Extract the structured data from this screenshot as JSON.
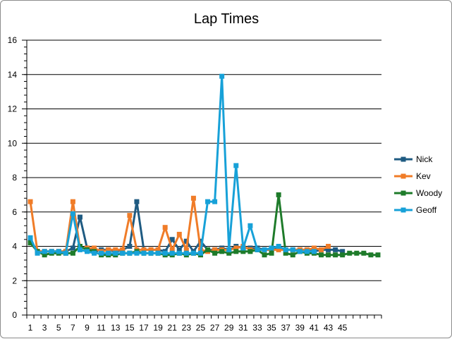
{
  "chart_data": {
    "type": "line",
    "title": "Lap Times",
    "xlabel": "",
    "ylabel": "",
    "ylim": [
      0,
      16
    ],
    "y_ticks": [
      "0",
      "2",
      "4",
      "6",
      "8",
      "10",
      "12",
      "14",
      "16"
    ],
    "x_ticks": [
      "1",
      "3",
      "5",
      "7",
      "9",
      "11",
      "13",
      "15",
      "17",
      "19",
      "21",
      "23",
      "25",
      "27",
      "29",
      "31",
      "33",
      "35",
      "37",
      "39",
      "41",
      "43",
      "45"
    ],
    "x_count": 50,
    "grid": "horizontal",
    "legend_position": "right",
    "series": [
      {
        "name": "Nick",
        "color": "#1f5b82",
        "values": [
          4.3,
          3.7,
          3.7,
          3.7,
          3.7,
          3.7,
          3.9,
          5.7,
          3.9,
          3.7,
          3.8,
          3.8,
          3.7,
          3.8,
          4.0,
          6.6,
          3.8,
          3.8,
          3.8,
          3.7,
          4.4,
          3.8,
          4.3,
          3.7,
          4.3,
          3.8,
          3.8,
          3.9,
          3.8,
          4.0,
          3.9,
          3.9,
          3.9,
          3.8,
          3.8,
          3.9,
          3.8,
          3.8,
          3.8,
          3.8,
          3.7,
          3.8,
          3.8,
          3.8,
          3.7
        ]
      },
      {
        "name": "Kev",
        "color": "#f07c28",
        "values": [
          6.6,
          3.7,
          3.7,
          3.7,
          3.7,
          3.7,
          6.6,
          3.9,
          3.9,
          3.9,
          3.7,
          3.8,
          3.8,
          3.8,
          5.8,
          3.8,
          3.8,
          3.8,
          3.8,
          5.1,
          3.8,
          4.7,
          3.8,
          6.8,
          3.8,
          3.7,
          3.8,
          3.8,
          3.8,
          3.9,
          4.0,
          3.8,
          3.8,
          3.8,
          3.8,
          3.8,
          3.8,
          3.8,
          3.8,
          3.8,
          3.9,
          3.8,
          4.0
        ]
      },
      {
        "name": "Woody",
        "color": "#1e7b2a",
        "values": [
          4.2,
          3.7,
          3.5,
          3.6,
          3.6,
          3.6,
          3.6,
          4.0,
          3.8,
          3.7,
          3.5,
          3.5,
          3.5,
          3.6,
          3.6,
          3.7,
          3.6,
          3.6,
          3.6,
          3.5,
          3.5,
          3.6,
          3.5,
          3.6,
          3.5,
          3.8,
          3.6,
          3.7,
          3.6,
          3.7,
          3.7,
          3.7,
          3.8,
          3.5,
          3.6,
          7.0,
          3.6,
          3.5,
          3.7,
          3.6,
          3.6,
          3.5,
          3.5,
          3.5,
          3.5,
          3.6,
          3.6,
          3.6,
          3.5,
          3.5
        ]
      },
      {
        "name": "Geoff",
        "color": "#17a1d8",
        "values": [
          4.5,
          3.6,
          3.7,
          3.7,
          3.7,
          3.6,
          5.9,
          3.8,
          3.7,
          3.6,
          3.6,
          3.6,
          3.6,
          3.6,
          3.6,
          3.6,
          3.6,
          3.6,
          3.6,
          3.6,
          3.6,
          3.6,
          3.6,
          3.6,
          3.6,
          6.6,
          6.6,
          13.9,
          3.8,
          8.7,
          3.9,
          5.2,
          3.8,
          3.8,
          3.9,
          4.0,
          3.8,
          3.8,
          3.7,
          3.7,
          3.7
        ]
      }
    ]
  }
}
